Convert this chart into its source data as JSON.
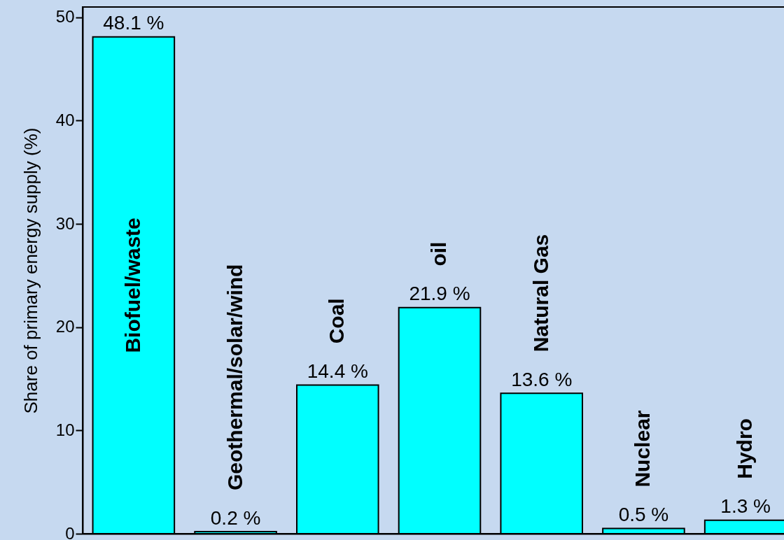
{
  "chart_data": {
    "type": "bar",
    "ylabel": "Share of primary energy supply (%)",
    "categories": [
      "Biofuel/waste",
      "Geothermal/solar/wind",
      "Coal",
      "oil",
      "Natural Gas",
      "Nuclear",
      "Hydro"
    ],
    "values": [
      48.1,
      0.2,
      14.4,
      21.9,
      13.6,
      0.5,
      1.3
    ],
    "value_labels": [
      "48.1 %",
      "0.2 %",
      "14.4 %",
      "21.9 %",
      "13.6 %",
      "0.5 %",
      "1.3 %"
    ],
    "color": "#00ffff",
    "ylim": [
      0,
      51
    ],
    "yticks": [
      0,
      10,
      20,
      30,
      40,
      50
    ],
    "tick_labels": "y"
  }
}
